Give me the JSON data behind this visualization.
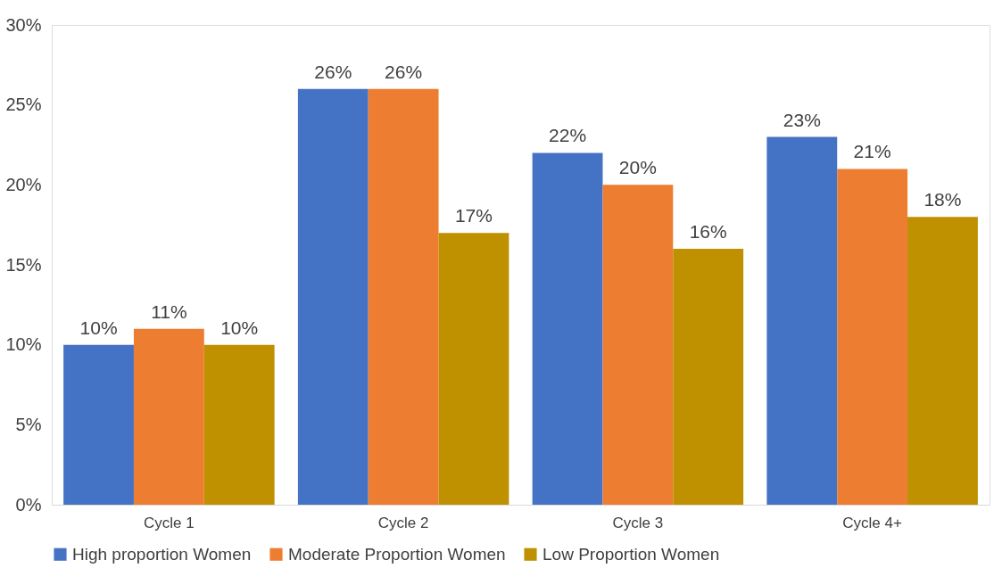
{
  "chart_data": {
    "type": "bar",
    "categories": [
      "Cycle 1",
      "Cycle 2",
      "Cycle 3",
      "Cycle 4+"
    ],
    "series": [
      {
        "name": "High proportion Women",
        "color": "#4472c4",
        "values": [
          10,
          26,
          22,
          23
        ],
        "value_labels": [
          "10%",
          "26%",
          "22%",
          "23%"
        ]
      },
      {
        "name": "Moderate Proportion Women",
        "color": "#ed7d31",
        "values": [
          11,
          26,
          20,
          21
        ],
        "value_labels": [
          "11%",
          "26%",
          "20%",
          "21%"
        ]
      },
      {
        "name": "Low Proportion Women",
        "color": "#bf9000",
        "values": [
          10,
          17,
          16,
          18
        ],
        "value_labels": [
          "10%",
          "17%",
          "16%",
          "18%"
        ]
      }
    ],
    "ylim": [
      0,
      30
    ],
    "yticks": [
      {
        "value": 0,
        "label": "0%"
      },
      {
        "value": 5,
        "label": "5%"
      },
      {
        "value": 10,
        "label": "10%"
      },
      {
        "value": 15,
        "label": "15%"
      },
      {
        "value": 20,
        "label": "20%"
      },
      {
        "value": 25,
        "label": "25%"
      },
      {
        "value": 30,
        "label": "30%"
      }
    ],
    "grid": false,
    "legend": "bottom"
  }
}
